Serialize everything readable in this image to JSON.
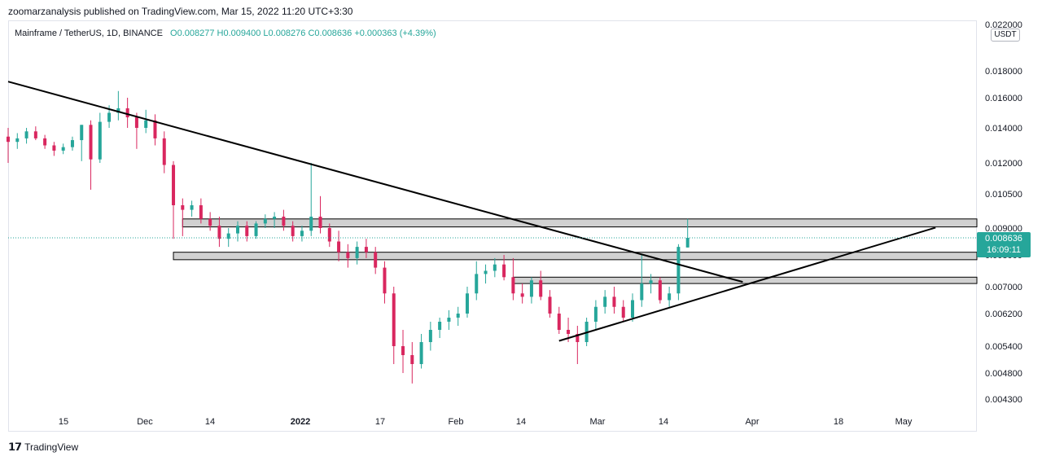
{
  "header": {
    "published": "zoomarzanalysis published on TradingView.com, Mar 15, 2022 11:20 UTC+3:30"
  },
  "legend": {
    "symbol": "Mainframe / TetherUS, 1D, BINANCE",
    "ohlc": "O0.008277 H0.009400 L0.008276 C0.008636 +0.000363 (+4.39%)"
  },
  "price_axis": {
    "unit": "USDT",
    "last_price": "0.008636",
    "countdown": "16:09:11"
  },
  "footer": {
    "brand": "TradingView"
  },
  "colors": {
    "up": "#26a69a",
    "down": "#d9275f",
    "line": "#000000",
    "zone": "#d1d1d1",
    "price_tag": "#26a69a"
  },
  "chart_data": {
    "type": "candlestick",
    "title": "Mainframe / TetherUS, 1D, BINANCE",
    "y_ticks": [
      "0.022000",
      "0.018000",
      "0.016000",
      "0.014000",
      "0.012000",
      "0.010500",
      "0.009000",
      "0.008000",
      "0.007000",
      "0.006200",
      "0.005400",
      "0.004800",
      "0.004300"
    ],
    "x_ticks": [
      "15",
      "Dec",
      "14",
      "2022",
      "17",
      "Feb",
      "14",
      "Mar",
      "14",
      "Apr",
      "18",
      "May"
    ],
    "x_range": [
      "2021-11-01",
      "2022-05-31"
    ],
    "last_price": 0.008636,
    "candles": [
      {
        "d": "2021-11-01",
        "o": 0.0135,
        "h": 0.014,
        "l": 0.012,
        "c": 0.0132
      },
      {
        "d": "2021-11-03",
        "o": 0.0132,
        "h": 0.0137,
        "l": 0.0128,
        "c": 0.0134
      },
      {
        "d": "2021-11-05",
        "o": 0.0134,
        "h": 0.014,
        "l": 0.0131,
        "c": 0.0138
      },
      {
        "d": "2021-11-07",
        "o": 0.0138,
        "h": 0.0141,
        "l": 0.0133,
        "c": 0.0134
      },
      {
        "d": "2021-11-09",
        "o": 0.0134,
        "h": 0.0136,
        "l": 0.0128,
        "c": 0.013
      },
      {
        "d": "2021-11-11",
        "o": 0.013,
        "h": 0.0132,
        "l": 0.0124,
        "c": 0.0127
      },
      {
        "d": "2021-11-13",
        "o": 0.0127,
        "h": 0.0131,
        "l": 0.0125,
        "c": 0.0129
      },
      {
        "d": "2021-11-15",
        "o": 0.0129,
        "h": 0.0135,
        "l": 0.0127,
        "c": 0.0133
      },
      {
        "d": "2021-11-17",
        "o": 0.0133,
        "h": 0.0142,
        "l": 0.0121,
        "c": 0.0142
      },
      {
        "d": "2021-11-19",
        "o": 0.0142,
        "h": 0.0145,
        "l": 0.0107,
        "c": 0.0122
      },
      {
        "d": "2021-11-21",
        "o": 0.0122,
        "h": 0.015,
        "l": 0.012,
        "c": 0.0144
      },
      {
        "d": "2021-11-23",
        "o": 0.0144,
        "h": 0.0155,
        "l": 0.014,
        "c": 0.015
      },
      {
        "d": "2021-11-25",
        "o": 0.015,
        "h": 0.0165,
        "l": 0.0145,
        "c": 0.0153
      },
      {
        "d": "2021-11-27",
        "o": 0.0153,
        "h": 0.016,
        "l": 0.014,
        "c": 0.0147
      },
      {
        "d": "2021-11-29",
        "o": 0.0147,
        "h": 0.015,
        "l": 0.0128,
        "c": 0.014
      },
      {
        "d": "2021-12-01",
        "o": 0.014,
        "h": 0.0152,
        "l": 0.0137,
        "c": 0.0145
      },
      {
        "d": "2021-12-03",
        "o": 0.0145,
        "h": 0.0149,
        "l": 0.013,
        "c": 0.0134
      },
      {
        "d": "2021-12-05",
        "o": 0.0134,
        "h": 0.0138,
        "l": 0.0115,
        "c": 0.0119
      },
      {
        "d": "2021-12-07",
        "o": 0.0119,
        "h": 0.0121,
        "l": 0.0086,
        "c": 0.01
      },
      {
        "d": "2021-12-09",
        "o": 0.01,
        "h": 0.0103,
        "l": 0.0087,
        "c": 0.0098
      },
      {
        "d": "2021-12-11",
        "o": 0.0098,
        "h": 0.0102,
        "l": 0.0095,
        "c": 0.01
      },
      {
        "d": "2021-12-13",
        "o": 0.01,
        "h": 0.0103,
        "l": 0.0092,
        "c": 0.0094
      },
      {
        "d": "2021-12-15",
        "o": 0.0094,
        "h": 0.0097,
        "l": 0.0089,
        "c": 0.0091
      },
      {
        "d": "2021-12-17",
        "o": 0.0091,
        "h": 0.0095,
        "l": 0.0083,
        "c": 0.0086
      },
      {
        "d": "2021-12-19",
        "o": 0.0086,
        "h": 0.009,
        "l": 0.0083,
        "c": 0.0088
      },
      {
        "d": "2021-12-21",
        "o": 0.0088,
        "h": 0.0093,
        "l": 0.0085,
        "c": 0.0091
      },
      {
        "d": "2021-12-23",
        "o": 0.0091,
        "h": 0.0093,
        "l": 0.0085,
        "c": 0.0087
      },
      {
        "d": "2021-12-25",
        "o": 0.0087,
        "h": 0.0093,
        "l": 0.0086,
        "c": 0.0092
      },
      {
        "d": "2021-12-27",
        "o": 0.0092,
        "h": 0.0096,
        "l": 0.009,
        "c": 0.0094
      },
      {
        "d": "2021-12-29",
        "o": 0.0094,
        "h": 0.0097,
        "l": 0.009,
        "c": 0.0095
      },
      {
        "d": "2021-12-31",
        "o": 0.0095,
        "h": 0.0098,
        "l": 0.0089,
        "c": 0.0091
      },
      {
        "d": "2022-01-02",
        "o": 0.0091,
        "h": 0.0093,
        "l": 0.0085,
        "c": 0.0087
      },
      {
        "d": "2022-01-04",
        "o": 0.0087,
        "h": 0.0091,
        "l": 0.0085,
        "c": 0.0089
      },
      {
        "d": "2022-01-06",
        "o": 0.0089,
        "h": 0.012,
        "l": 0.0087,
        "c": 0.0095
      },
      {
        "d": "2022-01-08",
        "o": 0.0095,
        "h": 0.0104,
        "l": 0.0088,
        "c": 0.009
      },
      {
        "d": "2022-01-10",
        "o": 0.009,
        "h": 0.0092,
        "l": 0.0083,
        "c": 0.0085
      },
      {
        "d": "2022-01-12",
        "o": 0.0085,
        "h": 0.0089,
        "l": 0.0078,
        "c": 0.0081
      },
      {
        "d": "2022-01-14",
        "o": 0.0081,
        "h": 0.0084,
        "l": 0.0076,
        "c": 0.0079
      },
      {
        "d": "2022-01-16",
        "o": 0.0079,
        "h": 0.0085,
        "l": 0.0077,
        "c": 0.0083
      },
      {
        "d": "2022-01-18",
        "o": 0.0083,
        "h": 0.0086,
        "l": 0.0079,
        "c": 0.0081
      },
      {
        "d": "2022-01-20",
        "o": 0.0081,
        "h": 0.0083,
        "l": 0.0074,
        "c": 0.0076
      },
      {
        "d": "2022-01-22",
        "o": 0.0076,
        "h": 0.0078,
        "l": 0.0065,
        "c": 0.0068
      },
      {
        "d": "2022-01-24",
        "o": 0.0068,
        "h": 0.007,
        "l": 0.005,
        "c": 0.0054
      },
      {
        "d": "2022-01-26",
        "o": 0.0054,
        "h": 0.0058,
        "l": 0.0048,
        "c": 0.0052
      },
      {
        "d": "2022-01-28",
        "o": 0.0052,
        "h": 0.0055,
        "l": 0.0046,
        "c": 0.005
      },
      {
        "d": "2022-01-30",
        "o": 0.005,
        "h": 0.0057,
        "l": 0.0049,
        "c": 0.0055
      },
      {
        "d": "2022-02-01",
        "o": 0.0055,
        "h": 0.006,
        "l": 0.0053,
        "c": 0.0058
      },
      {
        "d": "2022-02-03",
        "o": 0.0058,
        "h": 0.0061,
        "l": 0.0056,
        "c": 0.006
      },
      {
        "d": "2022-02-05",
        "o": 0.006,
        "h": 0.0063,
        "l": 0.0058,
        "c": 0.0061
      },
      {
        "d": "2022-02-07",
        "o": 0.0061,
        "h": 0.0064,
        "l": 0.0059,
        "c": 0.0062
      },
      {
        "d": "2022-02-09",
        "o": 0.0062,
        "h": 0.007,
        "l": 0.0061,
        "c": 0.0068
      },
      {
        "d": "2022-02-11",
        "o": 0.0068,
        "h": 0.0078,
        "l": 0.0066,
        "c": 0.0074
      },
      {
        "d": "2022-02-13",
        "o": 0.0074,
        "h": 0.0077,
        "l": 0.0071,
        "c": 0.0075
      },
      {
        "d": "2022-02-15",
        "o": 0.0075,
        "h": 0.0079,
        "l": 0.0073,
        "c": 0.0077
      },
      {
        "d": "2022-02-17",
        "o": 0.0077,
        "h": 0.008,
        "l": 0.0072,
        "c": 0.0073
      },
      {
        "d": "2022-02-19",
        "o": 0.0073,
        "h": 0.0079,
        "l": 0.0066,
        "c": 0.0068
      },
      {
        "d": "2022-02-21",
        "o": 0.0068,
        "h": 0.0071,
        "l": 0.0065,
        "c": 0.0067
      },
      {
        "d": "2022-02-23",
        "o": 0.0067,
        "h": 0.0073,
        "l": 0.0065,
        "c": 0.0072
      },
      {
        "d": "2022-02-25",
        "o": 0.0072,
        "h": 0.0075,
        "l": 0.0066,
        "c": 0.0067
      },
      {
        "d": "2022-02-27",
        "o": 0.0067,
        "h": 0.0069,
        "l": 0.0061,
        "c": 0.0062
      },
      {
        "d": "2022-03-01",
        "o": 0.0062,
        "h": 0.0064,
        "l": 0.0057,
        "c": 0.0058
      },
      {
        "d": "2022-03-03",
        "o": 0.0058,
        "h": 0.0061,
        "l": 0.0055,
        "c": 0.0057
      },
      {
        "d": "2022-03-05",
        "o": 0.0057,
        "h": 0.0059,
        "l": 0.005,
        "c": 0.0055
      },
      {
        "d": "2022-03-07",
        "o": 0.0055,
        "h": 0.0061,
        "l": 0.0054,
        "c": 0.006
      },
      {
        "d": "2022-03-09",
        "o": 0.006,
        "h": 0.0066,
        "l": 0.0058,
        "c": 0.0064
      },
      {
        "d": "2022-03-11",
        "o": 0.0064,
        "h": 0.0069,
        "l": 0.0062,
        "c": 0.0067
      },
      {
        "d": "2022-03-13",
        "o": 0.0067,
        "h": 0.007,
        "l": 0.0062,
        "c": 0.0064
      },
      {
        "d": "2022-03-15",
        "o": 0.0064,
        "h": 0.0066,
        "l": 0.006,
        "c": 0.0061
      },
      {
        "d": "2022-03-17",
        "o": 0.0061,
        "h": 0.0068,
        "l": 0.006,
        "c": 0.0066
      },
      {
        "d": "2022-03-19",
        "o": 0.0066,
        "h": 0.008,
        "l": 0.0064,
        "c": 0.0071
      },
      {
        "d": "2022-03-21",
        "o": 0.0071,
        "h": 0.0074,
        "l": 0.0068,
        "c": 0.0072
      },
      {
        "d": "2022-03-23",
        "o": 0.0072,
        "h": 0.0073,
        "l": 0.0065,
        "c": 0.0066
      },
      {
        "d": "2022-03-25",
        "o": 0.0066,
        "h": 0.007,
        "l": 0.0064,
        "c": 0.0068
      },
      {
        "d": "2022-03-27",
        "o": 0.0068,
        "h": 0.0084,
        "l": 0.0066,
        "c": 0.0083
      },
      {
        "d": "2022-03-29",
        "o": 0.008277,
        "h": 0.0094,
        "l": 0.008276,
        "c": 0.008636
      }
    ],
    "trendlines": [
      {
        "name": "descending",
        "from": {
          "d": "2021-11-01",
          "p": 0.0172
        },
        "to": {
          "d": "2022-04-10",
          "p": 0.00715
        }
      },
      {
        "name": "ascending",
        "from": {
          "d": "2022-03-01",
          "p": 0.00553
        },
        "to": {
          "d": "2022-05-22",
          "p": 0.00902
        }
      }
    ],
    "zones": [
      {
        "from_d": "2021-12-09",
        "to_d": "2022-05-31",
        "low": 0.00905,
        "high": 0.0094
      },
      {
        "from_d": "2021-12-07",
        "to_d": "2022-05-31",
        "low": 0.00785,
        "high": 0.0081
      },
      {
        "from_d": "2022-02-19",
        "to_d": "2022-05-31",
        "low": 0.0071,
        "high": 0.0073
      }
    ]
  }
}
